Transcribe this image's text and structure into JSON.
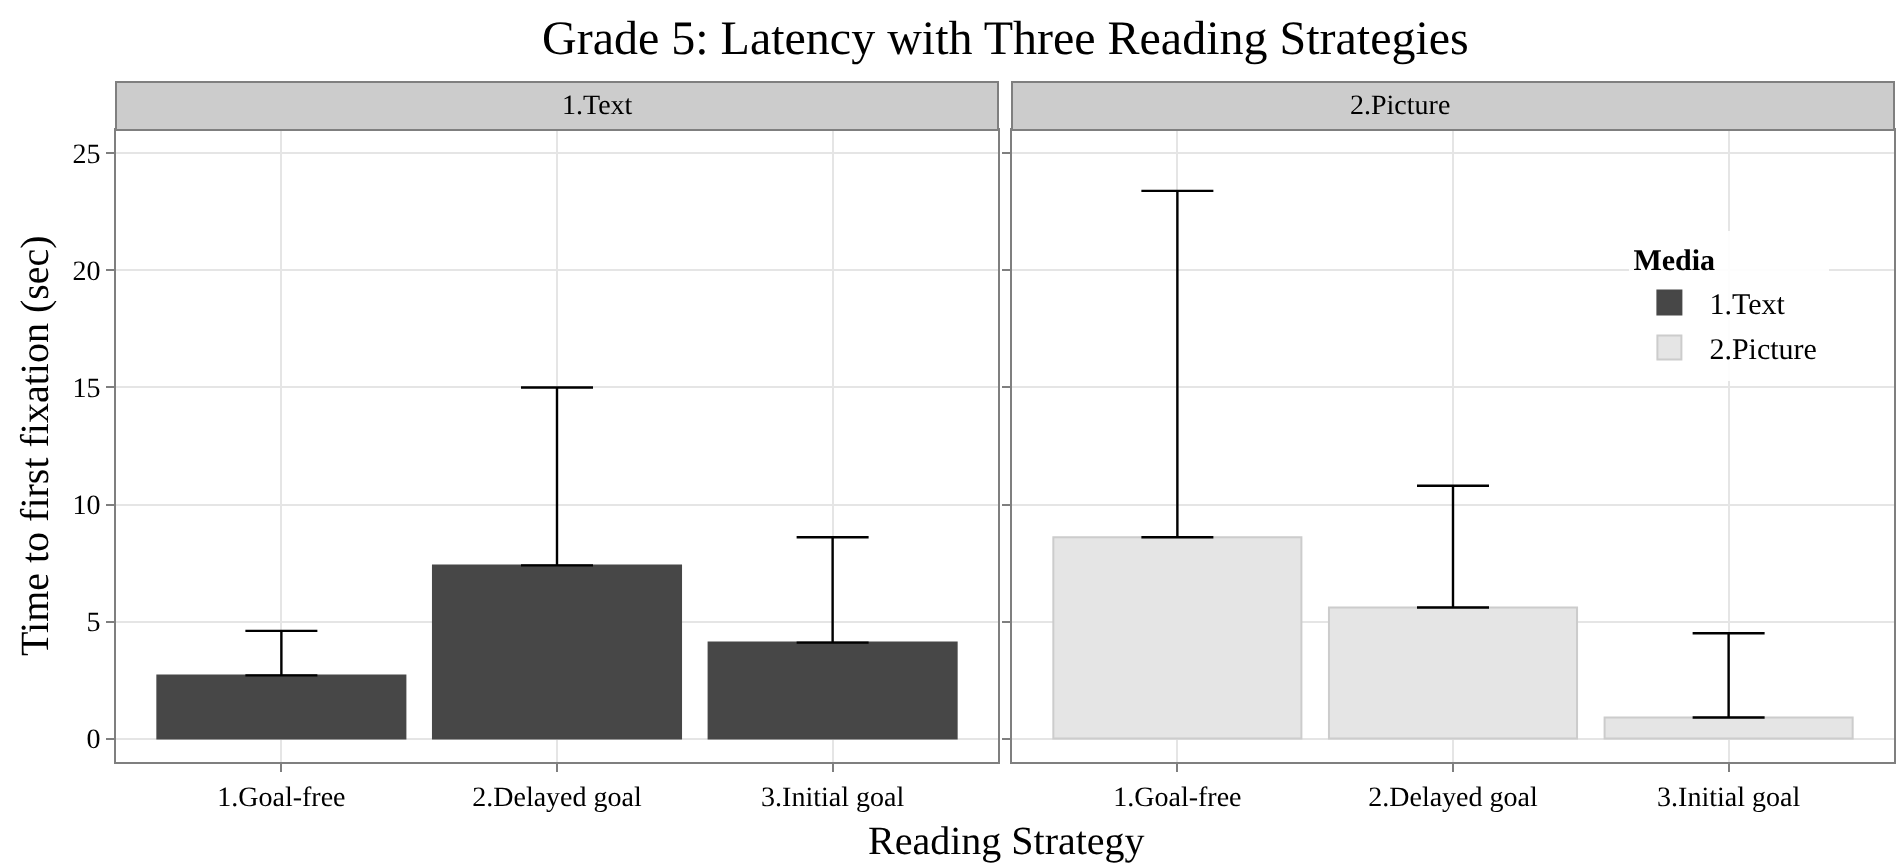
{
  "chart_data": [
    {
      "type": "bar",
      "title": "Grade 5: Latency with Three Reading Strategies",
      "subtitle": "1.Text",
      "xlabel": "Reading Strategy",
      "ylabel": "Time to first fixation (sec)",
      "categories": [
        "1.Goal-free",
        "2.Delayed goal",
        "3.Initial goal"
      ],
      "series": [
        {
          "name": "1.Text",
          "color": "#474747",
          "values": [
            2.7,
            7.4,
            4.1
          ],
          "errors": [
            [
              2.7,
              4.6
            ],
            [
              7.4,
              15.0
            ],
            [
              4.1,
              8.6
            ]
          ]
        }
      ],
      "ylim": [
        -1,
        26
      ],
      "yticks": [
        0,
        5,
        10,
        15,
        20,
        25
      ],
      "grid": true,
      "legend": "top right"
    },
    {
      "type": "bar",
      "subtitle": "2.Picture",
      "legend_title": "Media",
      "categories": [
        "1.Goal-free",
        "2.Delayed goal",
        "3.Initial goal"
      ],
      "series": [
        {
          "name": "2.Picture",
          "color": "#e5e5e5",
          "values": [
            8.6,
            5.6,
            0.9
          ],
          "errors": [
            [
              8.6,
              23.4
            ],
            [
              5.6,
              10.8
            ],
            [
              0.9,
              4.5
            ]
          ]
        }
      ],
      "ylim": [
        -1,
        26
      ],
      "yticks": [
        0,
        5,
        10,
        15,
        20,
        25
      ],
      "grid": true,
      "legend": "top right",
      "tick_labels": "x"
    }
  ]
}
